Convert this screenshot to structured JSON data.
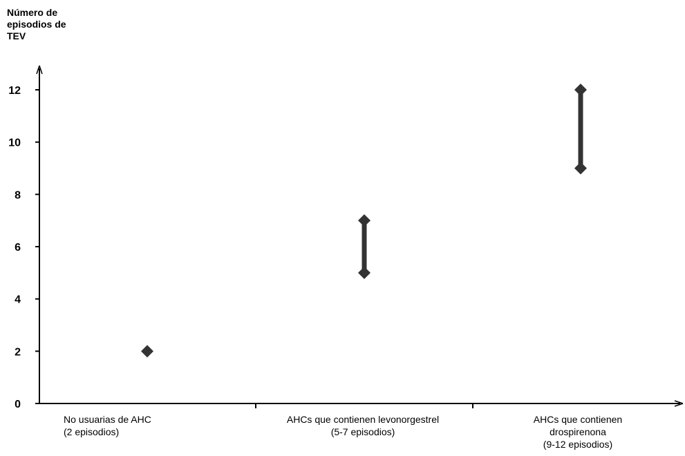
{
  "chart_data": {
    "type": "scatter",
    "title": "",
    "xlabel": "",
    "ylabel": "Número de\nepisodios de\nTEV",
    "ylim": [
      0,
      12
    ],
    "yticks": [
      0,
      2,
      4,
      6,
      8,
      10,
      12
    ],
    "categories": [
      "No usuarias de AHC\n(2 episodios)",
      "AHCs que contienen levonorgestrel\n(5-7 episodios)",
      "AHCs que contienen\ndrospirenona\n(9-12 episodios)"
    ],
    "ranges": [
      {
        "category": 0,
        "low": 2,
        "high": 2
      },
      {
        "category": 1,
        "low": 5,
        "high": 7
      },
      {
        "category": 2,
        "low": 9,
        "high": 12
      }
    ],
    "grid": false,
    "colors": {
      "marker": "#333333",
      "axis": "#000000"
    }
  }
}
